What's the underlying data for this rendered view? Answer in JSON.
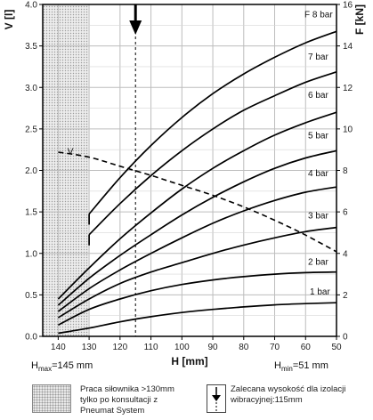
{
  "chart_data": {
    "type": "line",
    "xlabel": "H [mm]",
    "ylabel_left": "V [l]",
    "ylabel_right": "F [kN]",
    "x_reversed": true,
    "xlim": [
      145,
      50
    ],
    "ylim_left": [
      0,
      4.0
    ],
    "ylim_right": [
      0,
      16
    ],
    "x_ticks": [
      "140",
      "130",
      "120",
      "110",
      "100",
      "90",
      "80",
      "70",
      "60",
      "50"
    ],
    "y_left_ticks": [
      "0.0",
      "0.5",
      "1.0",
      "1.5",
      "2.0",
      "2.5",
      "3.0",
      "3.5",
      "4.0"
    ],
    "y_right_ticks": [
      "0",
      "2",
      "4",
      "6",
      "8",
      "10",
      "12",
      "14",
      "16"
    ],
    "grid": true,
    "series": [
      {
        "name": "1 bar",
        "axis": "right",
        "x": [
          140,
          130,
          120,
          110,
          100,
          90,
          80,
          70,
          60,
          50
        ],
        "values": [
          0.15,
          0.4,
          0.7,
          0.95,
          1.15,
          1.3,
          1.42,
          1.52,
          1.58,
          1.62
        ]
      },
      {
        "name": "2 bar",
        "axis": "right",
        "x": [
          140,
          130,
          120,
          110,
          100,
          90,
          80,
          70,
          60,
          50
        ],
        "values": [
          0.55,
          1.3,
          1.8,
          2.2,
          2.5,
          2.72,
          2.88,
          3.0,
          3.07,
          3.1
        ]
      },
      {
        "name": "3 bar",
        "axis": "right",
        "x": [
          140,
          130,
          120,
          110,
          100,
          90,
          80,
          70,
          60,
          50
        ],
        "values": [
          0.9,
          1.8,
          2.55,
          3.1,
          3.55,
          4.0,
          4.4,
          4.75,
          5.05,
          5.25
        ]
      },
      {
        "name": "4 bar",
        "axis": "right",
        "x": [
          140,
          130,
          120,
          110,
          100,
          90,
          80,
          70,
          60,
          50
        ],
        "values": [
          1.2,
          2.3,
          3.2,
          4.0,
          4.75,
          5.45,
          6.05,
          6.55,
          6.95,
          7.2
        ]
      },
      {
        "name": "5 bar",
        "axis": "right",
        "x": [
          140,
          130,
          120,
          110,
          100,
          90,
          80,
          70,
          60,
          50
        ],
        "values": [
          1.5,
          2.8,
          3.9,
          4.9,
          5.85,
          6.7,
          7.45,
          8.1,
          8.6,
          8.95
        ]
      },
      {
        "name": "6 bar",
        "axis": "right",
        "x": [
          140,
          130,
          120,
          110,
          100,
          90,
          80,
          70,
          60,
          50
        ],
        "values": [
          1.8,
          3.3,
          4.7,
          5.95,
          7.1,
          8.1,
          8.95,
          9.7,
          10.3,
          10.8
        ]
      },
      {
        "name": "7 bar",
        "axis": "right",
        "x": [
          130,
          120,
          110,
          100,
          90,
          80,
          70,
          60,
          50
        ],
        "values": [
          4.9,
          6.4,
          7.75,
          8.95,
          10.0,
          10.9,
          11.6,
          12.25,
          12.75
        ]
      },
      {
        "name": "F 8 bar",
        "axis": "right",
        "x": [
          130,
          120,
          110,
          100,
          90,
          80,
          70,
          60,
          50
        ],
        "values": [
          5.9,
          7.65,
          9.2,
          10.55,
          11.7,
          12.65,
          13.45,
          14.15,
          14.7
        ]
      },
      {
        "name": "V",
        "axis": "left",
        "dashed": true,
        "x": [
          140,
          130,
          120,
          110,
          100,
          90,
          80,
          70,
          60,
          50
        ],
        "values": [
          2.22,
          2.16,
          2.05,
          1.94,
          1.82,
          1.7,
          1.56,
          1.4,
          1.22,
          1.02
        ]
      }
    ],
    "recommended_height_line_x": 115,
    "hatched_region_x": [
      145,
      130
    ],
    "h_max_label": "H",
    "h_max_sub": "max",
    "h_max_value": "=145 mm",
    "h_min_label": "H",
    "h_min_sub": "min",
    "h_min_value": "=51 mm"
  },
  "legend": {
    "hatched_text": "Praca siłownika >130mm tylko po konsultacji z Pneumat System",
    "arrow_text": "Zalecana wysokość dla izolacji wibracyjnej:115mm"
  }
}
